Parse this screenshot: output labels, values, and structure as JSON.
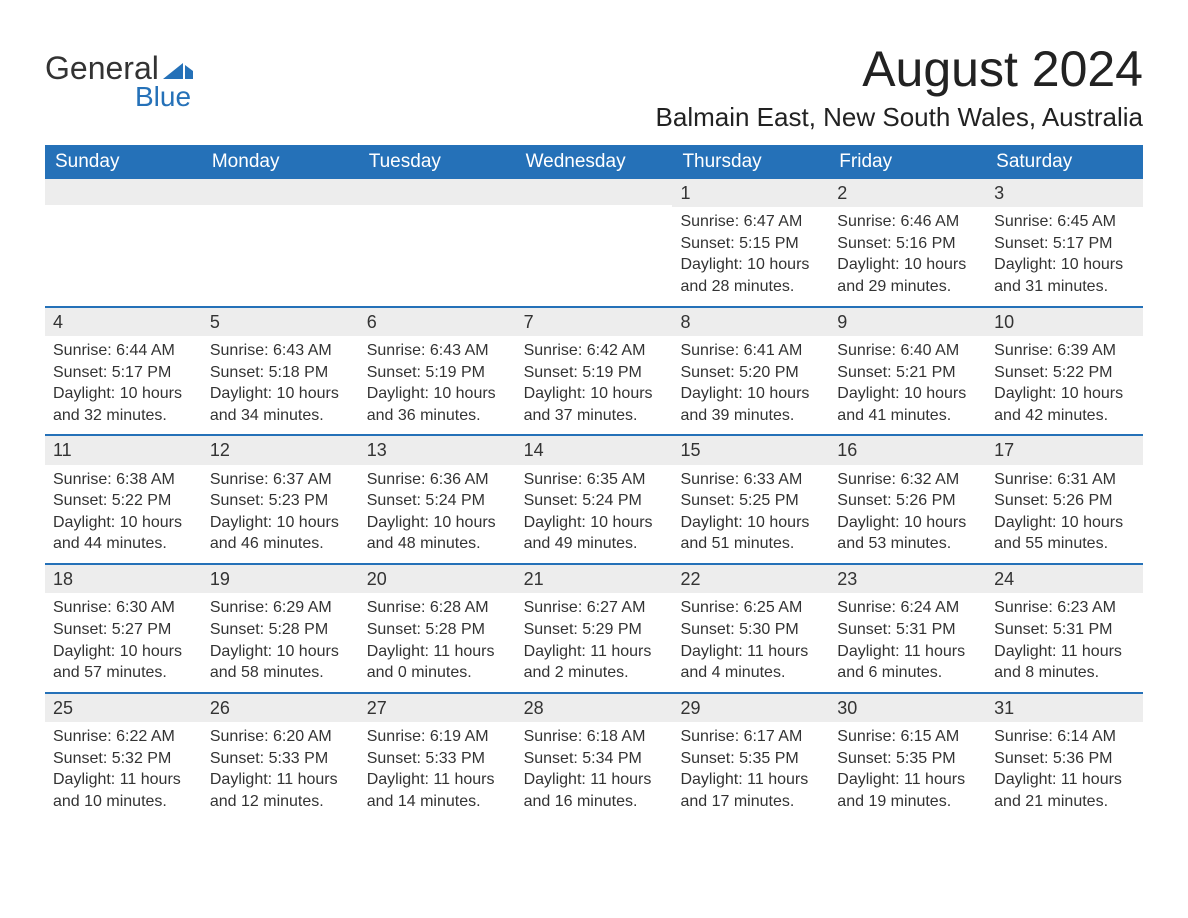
{
  "logo": {
    "word1": "General",
    "word2": "Blue",
    "mark_color": "#2571b8",
    "text_color": "#333333"
  },
  "title": "August 2024",
  "subtitle": "Balmain East, New South Wales, Australia",
  "colors": {
    "header_bg": "#2571b8",
    "header_text": "#ffffff",
    "strip_bg": "#ededed",
    "divider": "#2571b8",
    "body_text": "#333333",
    "page_bg": "#ffffff"
  },
  "typography": {
    "title_fontsize": 50,
    "subtitle_fontsize": 26,
    "dayhead_fontsize": 19,
    "date_fontsize": 18,
    "detail_fontsize": 16,
    "font_family": "Arial"
  },
  "layout": {
    "columns": 7,
    "rows": 5,
    "first_day_col": 4
  },
  "day_headers": [
    "Sunday",
    "Monday",
    "Tuesday",
    "Wednesday",
    "Thursday",
    "Friday",
    "Saturday"
  ],
  "weeks": [
    [
      null,
      null,
      null,
      null,
      {
        "date": "1",
        "sunrise": "Sunrise: 6:47 AM",
        "sunset": "Sunset: 5:15 PM",
        "daylight": "Daylight: 10 hours and 28 minutes."
      },
      {
        "date": "2",
        "sunrise": "Sunrise: 6:46 AM",
        "sunset": "Sunset: 5:16 PM",
        "daylight": "Daylight: 10 hours and 29 minutes."
      },
      {
        "date": "3",
        "sunrise": "Sunrise: 6:45 AM",
        "sunset": "Sunset: 5:17 PM",
        "daylight": "Daylight: 10 hours and 31 minutes."
      }
    ],
    [
      {
        "date": "4",
        "sunrise": "Sunrise: 6:44 AM",
        "sunset": "Sunset: 5:17 PM",
        "daylight": "Daylight: 10 hours and 32 minutes."
      },
      {
        "date": "5",
        "sunrise": "Sunrise: 6:43 AM",
        "sunset": "Sunset: 5:18 PM",
        "daylight": "Daylight: 10 hours and 34 minutes."
      },
      {
        "date": "6",
        "sunrise": "Sunrise: 6:43 AM",
        "sunset": "Sunset: 5:19 PM",
        "daylight": "Daylight: 10 hours and 36 minutes."
      },
      {
        "date": "7",
        "sunrise": "Sunrise: 6:42 AM",
        "sunset": "Sunset: 5:19 PM",
        "daylight": "Daylight: 10 hours and 37 minutes."
      },
      {
        "date": "8",
        "sunrise": "Sunrise: 6:41 AM",
        "sunset": "Sunset: 5:20 PM",
        "daylight": "Daylight: 10 hours and 39 minutes."
      },
      {
        "date": "9",
        "sunrise": "Sunrise: 6:40 AM",
        "sunset": "Sunset: 5:21 PM",
        "daylight": "Daylight: 10 hours and 41 minutes."
      },
      {
        "date": "10",
        "sunrise": "Sunrise: 6:39 AM",
        "sunset": "Sunset: 5:22 PM",
        "daylight": "Daylight: 10 hours and 42 minutes."
      }
    ],
    [
      {
        "date": "11",
        "sunrise": "Sunrise: 6:38 AM",
        "sunset": "Sunset: 5:22 PM",
        "daylight": "Daylight: 10 hours and 44 minutes."
      },
      {
        "date": "12",
        "sunrise": "Sunrise: 6:37 AM",
        "sunset": "Sunset: 5:23 PM",
        "daylight": "Daylight: 10 hours and 46 minutes."
      },
      {
        "date": "13",
        "sunrise": "Sunrise: 6:36 AM",
        "sunset": "Sunset: 5:24 PM",
        "daylight": "Daylight: 10 hours and 48 minutes."
      },
      {
        "date": "14",
        "sunrise": "Sunrise: 6:35 AM",
        "sunset": "Sunset: 5:24 PM",
        "daylight": "Daylight: 10 hours and 49 minutes."
      },
      {
        "date": "15",
        "sunrise": "Sunrise: 6:33 AM",
        "sunset": "Sunset: 5:25 PM",
        "daylight": "Daylight: 10 hours and 51 minutes."
      },
      {
        "date": "16",
        "sunrise": "Sunrise: 6:32 AM",
        "sunset": "Sunset: 5:26 PM",
        "daylight": "Daylight: 10 hours and 53 minutes."
      },
      {
        "date": "17",
        "sunrise": "Sunrise: 6:31 AM",
        "sunset": "Sunset: 5:26 PM",
        "daylight": "Daylight: 10 hours and 55 minutes."
      }
    ],
    [
      {
        "date": "18",
        "sunrise": "Sunrise: 6:30 AM",
        "sunset": "Sunset: 5:27 PM",
        "daylight": "Daylight: 10 hours and 57 minutes."
      },
      {
        "date": "19",
        "sunrise": "Sunrise: 6:29 AM",
        "sunset": "Sunset: 5:28 PM",
        "daylight": "Daylight: 10 hours and 58 minutes."
      },
      {
        "date": "20",
        "sunrise": "Sunrise: 6:28 AM",
        "sunset": "Sunset: 5:28 PM",
        "daylight": "Daylight: 11 hours and 0 minutes."
      },
      {
        "date": "21",
        "sunrise": "Sunrise: 6:27 AM",
        "sunset": "Sunset: 5:29 PM",
        "daylight": "Daylight: 11 hours and 2 minutes."
      },
      {
        "date": "22",
        "sunrise": "Sunrise: 6:25 AM",
        "sunset": "Sunset: 5:30 PM",
        "daylight": "Daylight: 11 hours and 4 minutes."
      },
      {
        "date": "23",
        "sunrise": "Sunrise: 6:24 AM",
        "sunset": "Sunset: 5:31 PM",
        "daylight": "Daylight: 11 hours and 6 minutes."
      },
      {
        "date": "24",
        "sunrise": "Sunrise: 6:23 AM",
        "sunset": "Sunset: 5:31 PM",
        "daylight": "Daylight: 11 hours and 8 minutes."
      }
    ],
    [
      {
        "date": "25",
        "sunrise": "Sunrise: 6:22 AM",
        "sunset": "Sunset: 5:32 PM",
        "daylight": "Daylight: 11 hours and 10 minutes."
      },
      {
        "date": "26",
        "sunrise": "Sunrise: 6:20 AM",
        "sunset": "Sunset: 5:33 PM",
        "daylight": "Daylight: 11 hours and 12 minutes."
      },
      {
        "date": "27",
        "sunrise": "Sunrise: 6:19 AM",
        "sunset": "Sunset: 5:33 PM",
        "daylight": "Daylight: 11 hours and 14 minutes."
      },
      {
        "date": "28",
        "sunrise": "Sunrise: 6:18 AM",
        "sunset": "Sunset: 5:34 PM",
        "daylight": "Daylight: 11 hours and 16 minutes."
      },
      {
        "date": "29",
        "sunrise": "Sunrise: 6:17 AM",
        "sunset": "Sunset: 5:35 PM",
        "daylight": "Daylight: 11 hours and 17 minutes."
      },
      {
        "date": "30",
        "sunrise": "Sunrise: 6:15 AM",
        "sunset": "Sunset: 5:35 PM",
        "daylight": "Daylight: 11 hours and 19 minutes."
      },
      {
        "date": "31",
        "sunrise": "Sunrise: 6:14 AM",
        "sunset": "Sunset: 5:36 PM",
        "daylight": "Daylight: 11 hours and 21 minutes."
      }
    ]
  ]
}
